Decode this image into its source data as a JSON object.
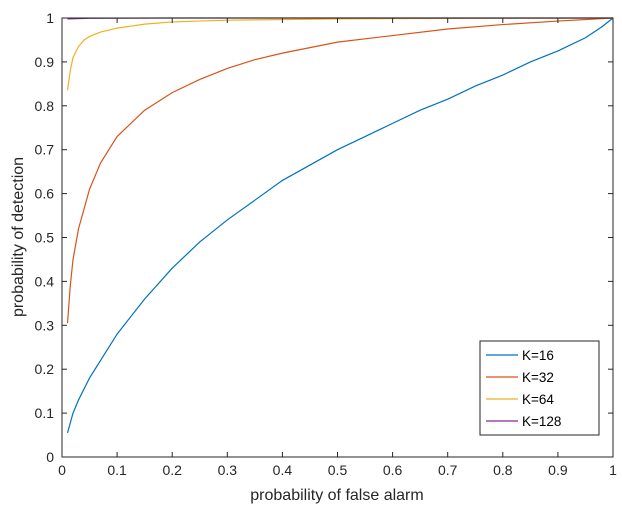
{
  "chart_data": {
    "type": "line",
    "title": "",
    "xlabel": "probability of false alarm",
    "ylabel": "probability of detection",
    "xlim": [
      0,
      1
    ],
    "ylim": [
      0,
      1
    ],
    "x_ticks": [
      "0",
      "0.1",
      "0.2",
      "0.3",
      "0.4",
      "0.5",
      "0.6",
      "0.7",
      "0.8",
      "0.9",
      "1"
    ],
    "y_ticks": [
      "0",
      "0.1",
      "0.2",
      "0.3",
      "0.4",
      "0.5",
      "0.6",
      "0.7",
      "0.8",
      "0.9",
      "1"
    ],
    "grid": false,
    "legend_position": "bottom-right",
    "series": [
      {
        "name": "K=16",
        "color": "#0072BD",
        "x": [
          0.01,
          0.02,
          0.03,
          0.05,
          0.07,
          0.1,
          0.15,
          0.2,
          0.25,
          0.3,
          0.35,
          0.4,
          0.45,
          0.5,
          0.55,
          0.6,
          0.65,
          0.7,
          0.75,
          0.8,
          0.85,
          0.9,
          0.95,
          0.98,
          1.0
        ],
        "y": [
          0.055,
          0.1,
          0.13,
          0.18,
          0.22,
          0.28,
          0.36,
          0.43,
          0.49,
          0.54,
          0.585,
          0.63,
          0.665,
          0.7,
          0.73,
          0.76,
          0.79,
          0.815,
          0.845,
          0.87,
          0.9,
          0.925,
          0.955,
          0.98,
          1.0
        ]
      },
      {
        "name": "K=32",
        "color": "#D95319",
        "x": [
          0.01,
          0.015,
          0.02,
          0.03,
          0.05,
          0.07,
          0.1,
          0.15,
          0.2,
          0.25,
          0.3,
          0.35,
          0.4,
          0.5,
          0.6,
          0.7,
          0.8,
          0.9,
          1.0
        ],
        "y": [
          0.305,
          0.39,
          0.45,
          0.52,
          0.61,
          0.67,
          0.73,
          0.79,
          0.83,
          0.86,
          0.885,
          0.905,
          0.92,
          0.945,
          0.96,
          0.975,
          0.985,
          0.993,
          1.0
        ]
      },
      {
        "name": "K=64",
        "color": "#EDB120",
        "x": [
          0.01,
          0.015,
          0.02,
          0.03,
          0.04,
          0.05,
          0.07,
          0.1,
          0.15,
          0.2,
          0.3,
          0.5,
          0.7,
          1.0
        ],
        "y": [
          0.835,
          0.88,
          0.91,
          0.935,
          0.95,
          0.958,
          0.968,
          0.977,
          0.986,
          0.991,
          0.995,
          0.998,
          0.999,
          1.0
        ]
      },
      {
        "name": "K=128",
        "color": "#7E2F8E",
        "x": [
          0.01,
          0.05,
          0.2,
          0.5,
          1.0
        ],
        "y": [
          0.998,
          0.9995,
          1.0,
          1.0,
          1.0
        ]
      }
    ]
  }
}
